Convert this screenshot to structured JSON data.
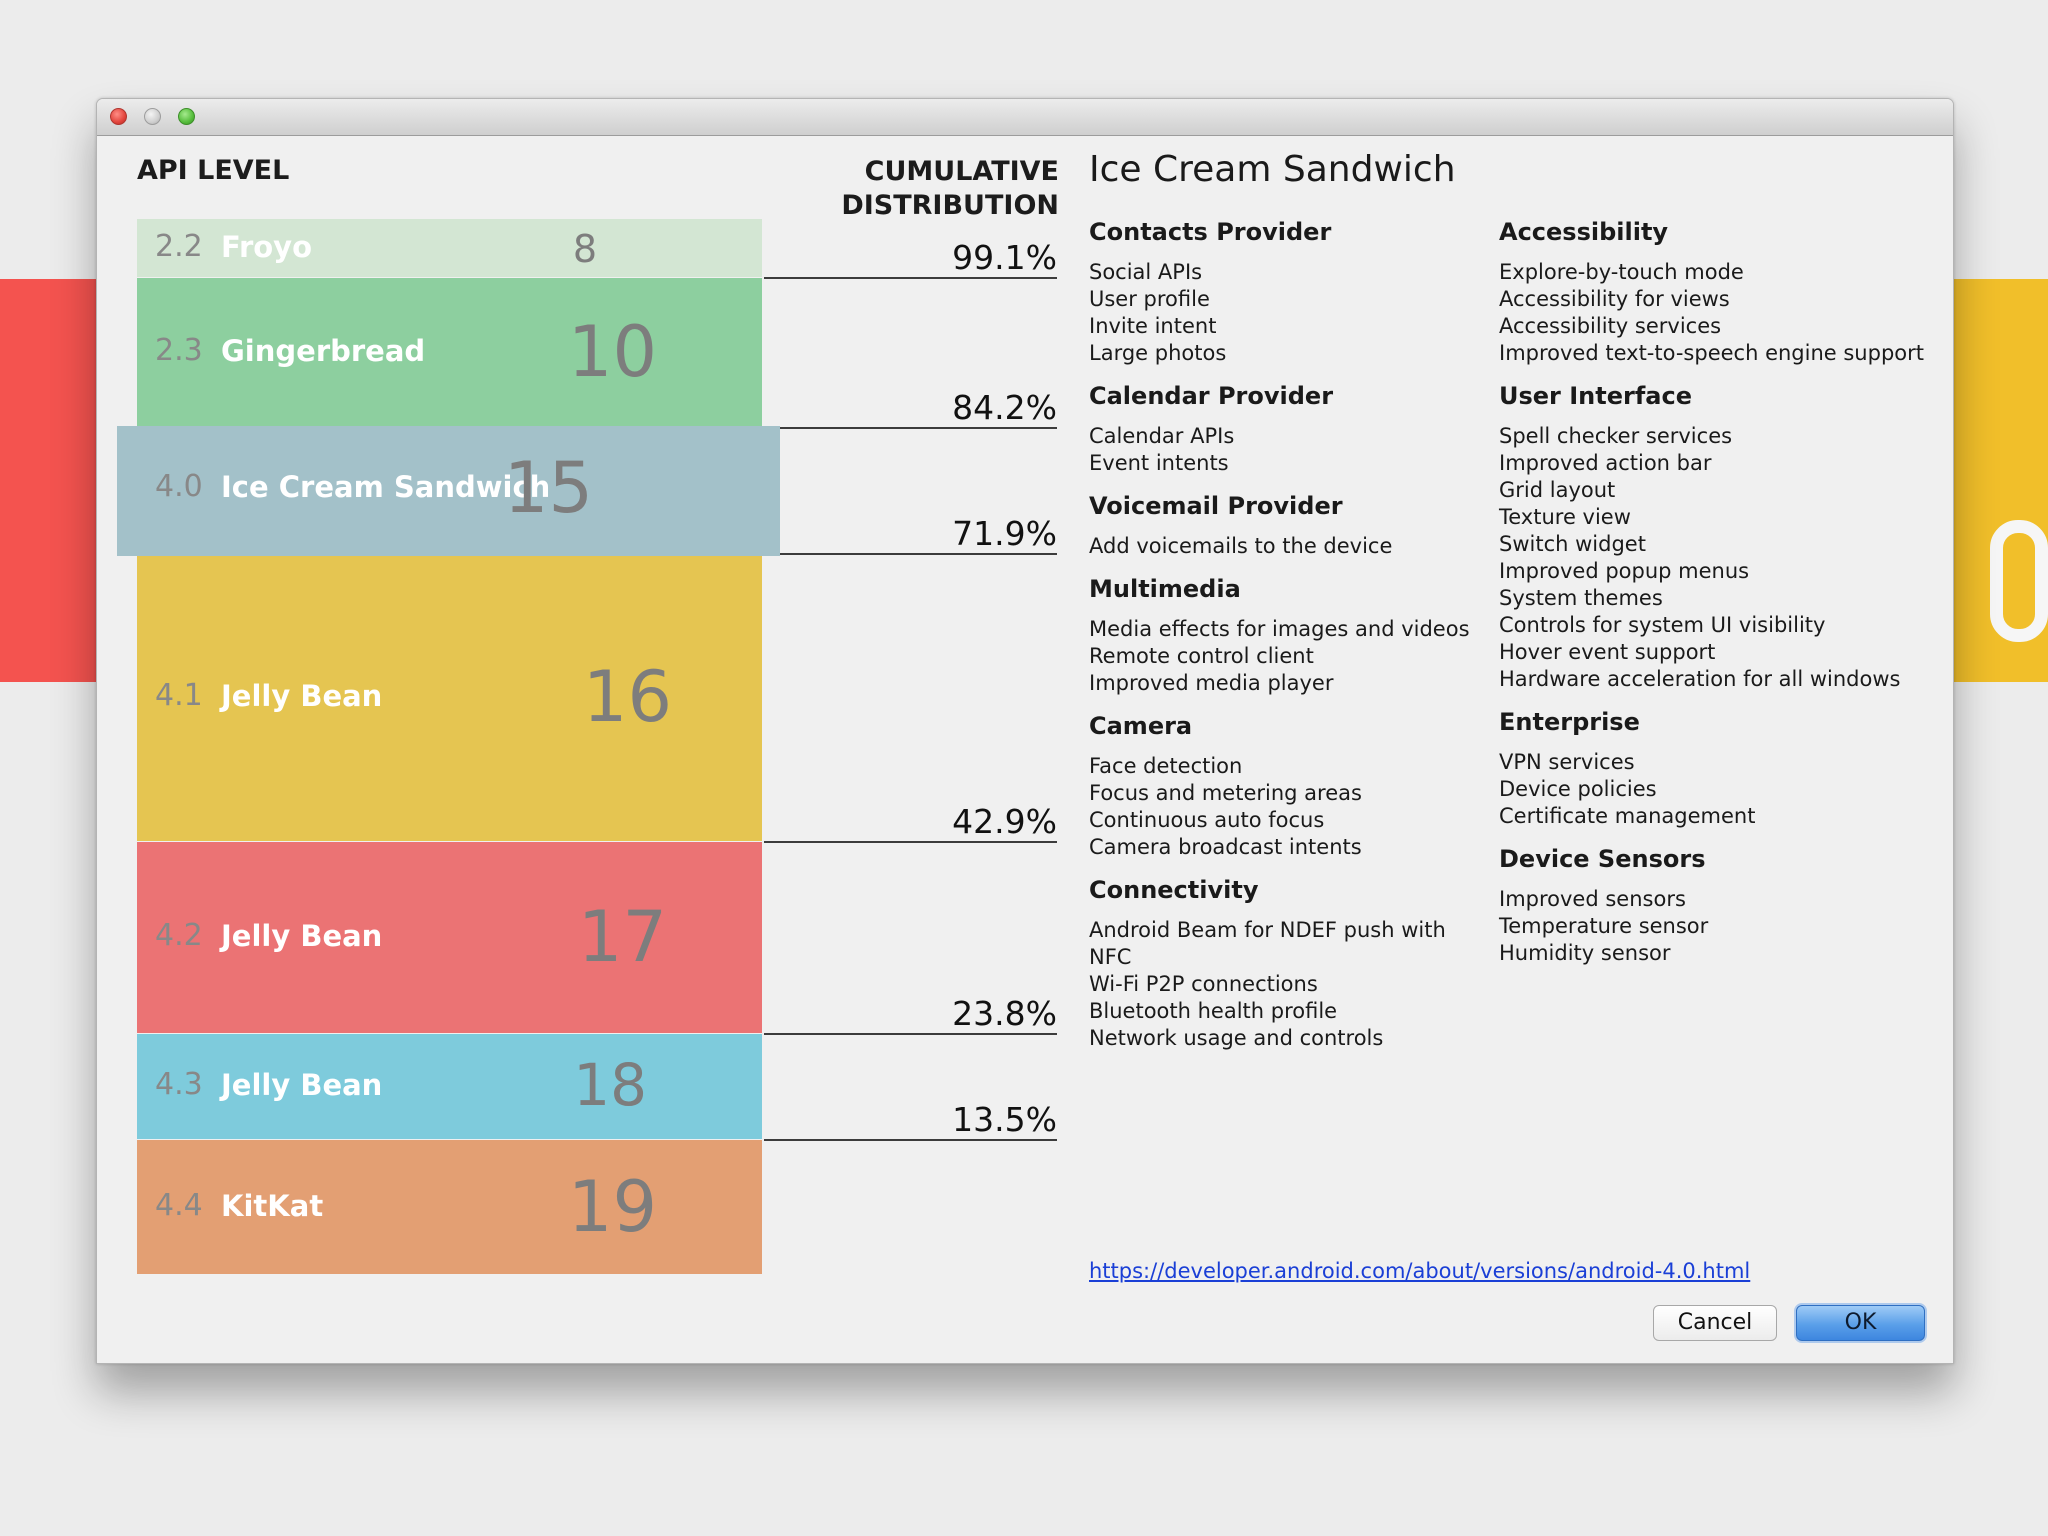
{
  "dialog": {
    "headers": {
      "api_level": "API LEVEL",
      "cumulative": "CUMULATIVE\nDISTRIBUTION"
    },
    "versions": [
      {
        "version": "2.2",
        "name": "Froyo",
        "api": "8",
        "color": "#d3e6d3",
        "cumulative": "99.1%"
      },
      {
        "version": "2.3",
        "name": "Gingerbread",
        "api": "10",
        "color": "#8dcf9f",
        "cumulative": "84.2%"
      },
      {
        "version": "4.0",
        "name": "Ice Cream Sandwich",
        "api": "15",
        "color": "#a3c1c9",
        "cumulative": "71.9%",
        "selected": true
      },
      {
        "version": "4.1",
        "name": "Jelly Bean",
        "api": "16",
        "color": "#e5c551",
        "cumulative": "42.9%"
      },
      {
        "version": "4.2",
        "name": "Jelly Bean",
        "api": "17",
        "color": "#eb7374",
        "cumulative": "23.8%"
      },
      {
        "version": "4.3",
        "name": "Jelly Bean",
        "api": "18",
        "color": "#7ecbdc",
        "cumulative": "13.5%"
      },
      {
        "version": "4.4",
        "name": "KitKat",
        "api": "19",
        "color": "#e39f73",
        "cumulative": ""
      }
    ],
    "detail": {
      "title": "Ice Cream Sandwich",
      "left_sections": [
        {
          "title": "Contacts Provider",
          "items": [
            "Social APIs",
            "User profile",
            "Invite intent",
            "Large photos"
          ]
        },
        {
          "title": "Calendar Provider",
          "items": [
            "Calendar APIs",
            "Event intents"
          ]
        },
        {
          "title": "Voicemail Provider",
          "items": [
            "Add voicemails to the device"
          ]
        },
        {
          "title": "Multimedia",
          "items": [
            "Media effects for images and videos",
            "Remote control client",
            "Improved media player"
          ]
        },
        {
          "title": "Camera",
          "items": [
            "Face detection",
            "Focus and metering areas",
            "Continuous auto focus",
            "Camera broadcast intents"
          ]
        },
        {
          "title": "Connectivity",
          "items": [
            "Android Beam for NDEF push with NFC",
            "Wi-Fi P2P connections",
            "Bluetooth health profile",
            "Network usage and controls"
          ]
        }
      ],
      "right_sections": [
        {
          "title": "Accessibility",
          "items": [
            "Explore-by-touch mode",
            "Accessibility for views",
            "Accessibility services",
            "Improved text-to-speech engine support"
          ]
        },
        {
          "title": "User Interface",
          "items": [
            "Spell checker services",
            "Improved action bar",
            "Grid layout",
            "Texture view",
            "Switch widget",
            "Improved popup menus",
            "System themes",
            "Controls for system UI visibility",
            "Hover event support",
            "Hardware acceleration for all windows"
          ]
        },
        {
          "title": "Enterprise",
          "items": [
            "VPN services",
            "Device policies",
            "Certificate management"
          ]
        },
        {
          "title": "Device Sensors",
          "items": [
            "Improved sensors",
            "Temperature sensor",
            "Humidity sensor"
          ]
        }
      ],
      "link": "https://developer.android.com/about/versions/android-4.0.html"
    },
    "buttons": {
      "cancel": "Cancel",
      "ok": "OK"
    }
  }
}
